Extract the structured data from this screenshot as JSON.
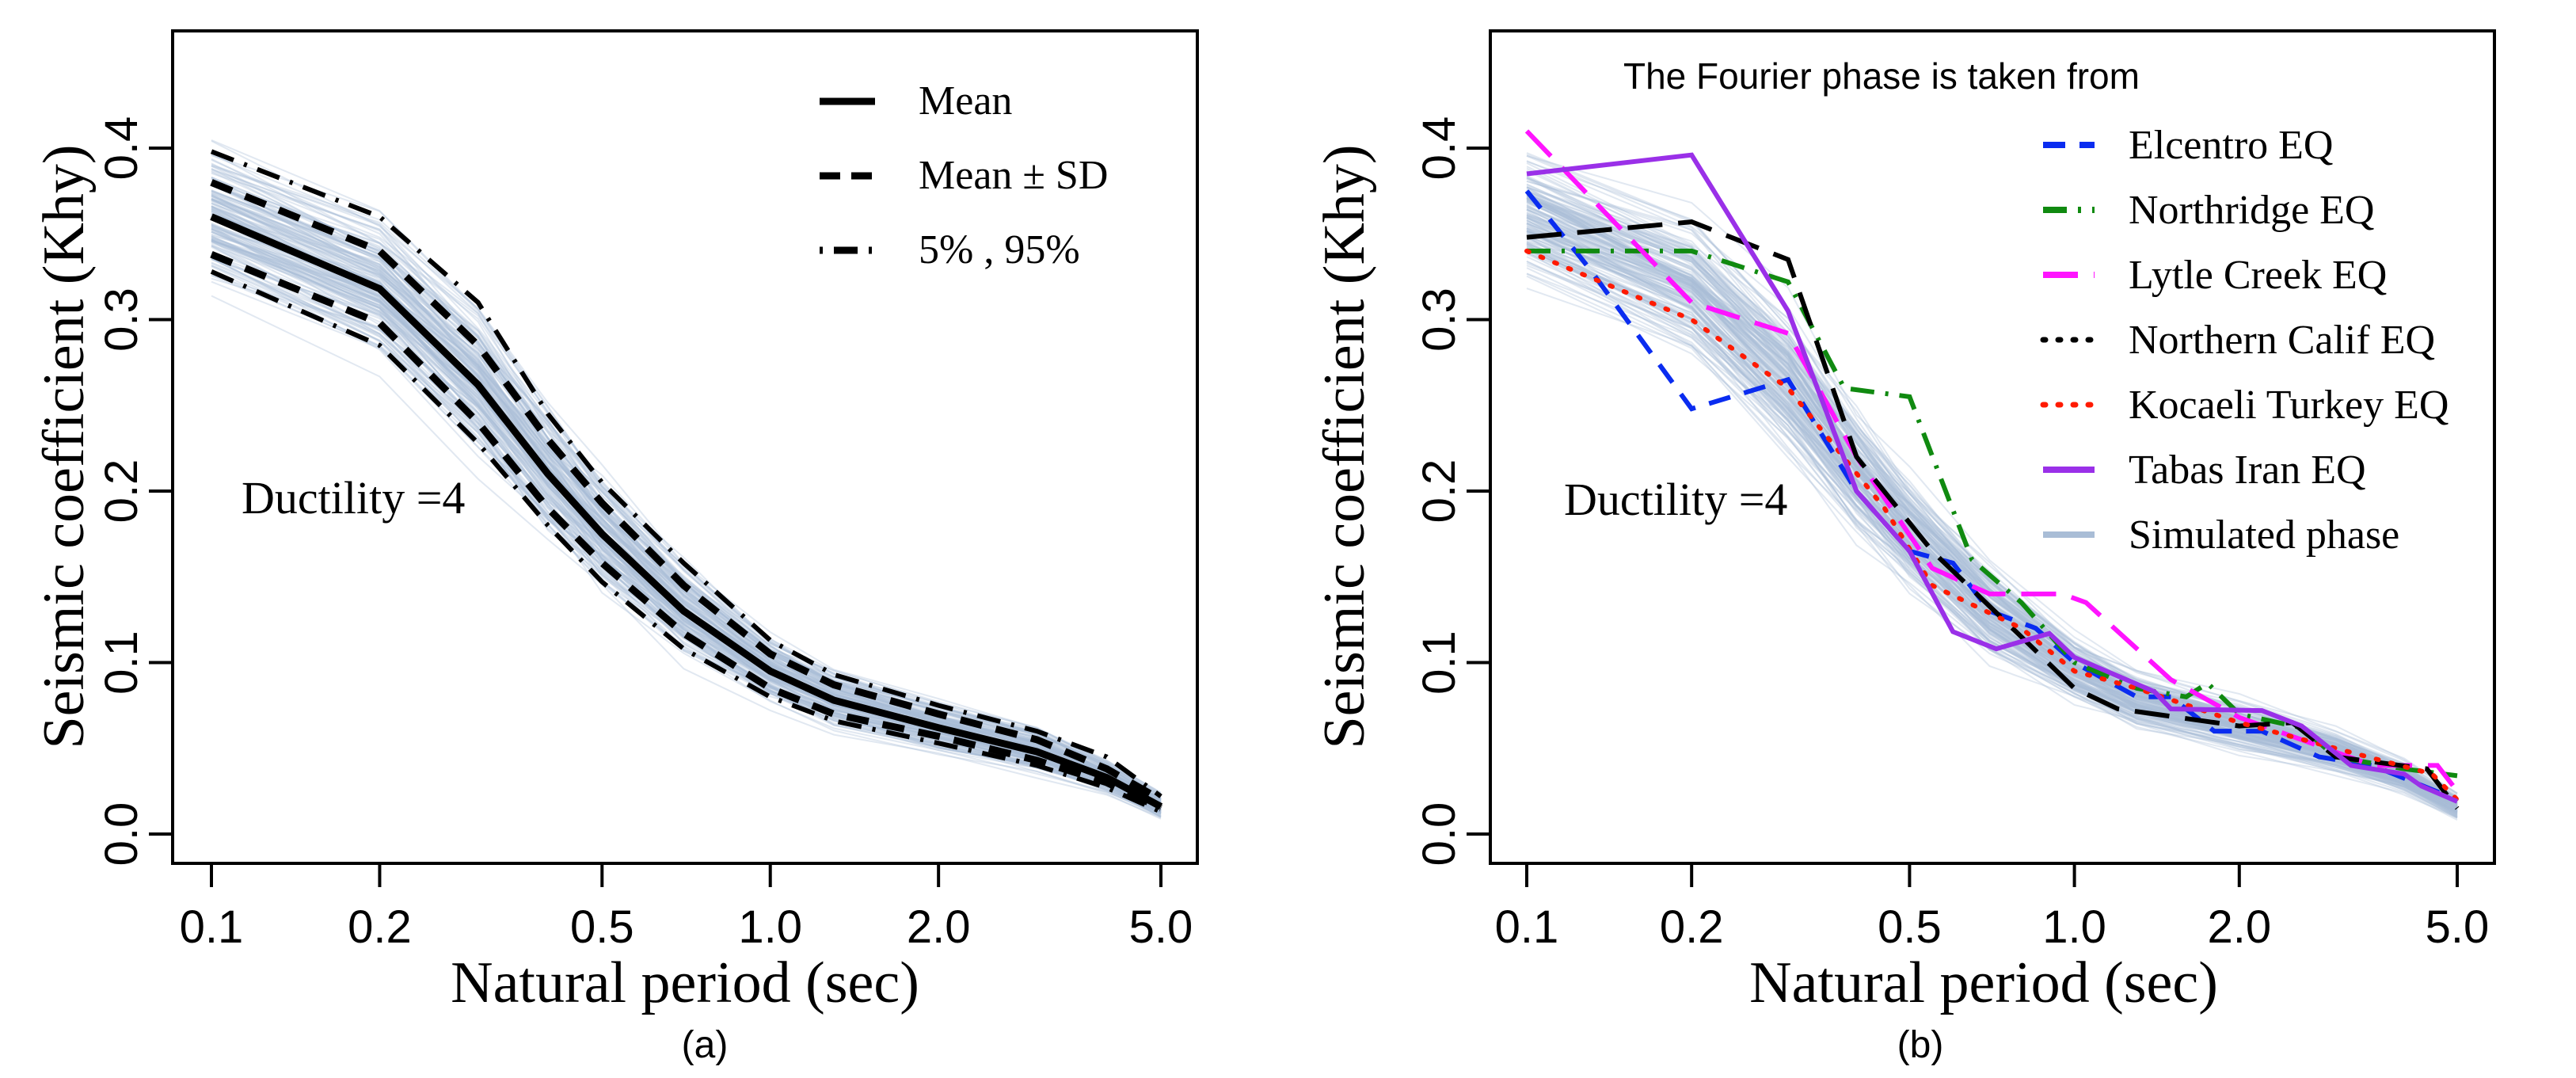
{
  "chart_data": [
    {
      "type": "line",
      "panel_caption": "(a)",
      "xlabel": "Natural period (sec)",
      "ylabel": "Seismic coefficient (Khy)",
      "xscale": "log",
      "xlim": [
        0.1,
        5.0
      ],
      "ylim": [
        0.0,
        0.45
      ],
      "xticks": [
        "0.1",
        "0.2",
        "0.5",
        "1.0",
        "2.0",
        "5.0"
      ],
      "yticks": [
        "0.0",
        "0.1",
        "0.2",
        "0.3",
        "0.4"
      ],
      "annotation": "Ductility =4",
      "legend_position": "top-right",
      "background_series": {
        "name": "Simulated phase",
        "color": "#a9bdd6"
      },
      "x": [
        0.1,
        0.2,
        0.3,
        0.4,
        0.5,
        0.7,
        1.0,
        1.3,
        2.0,
        3.0,
        4.0,
        5.0
      ],
      "series": [
        {
          "name": "Mean",
          "legend": "Mean",
          "style": "solid",
          "color": "#000000",
          "values": [
            0.36,
            0.318,
            0.262,
            0.21,
            0.175,
            0.13,
            0.095,
            0.078,
            0.062,
            0.048,
            0.033,
            0.016
          ]
        },
        {
          "name": "Mean + SD",
          "legend": "Mean ± SD",
          "style": "dashed",
          "color": "#000000",
          "values": [
            0.38,
            0.34,
            0.285,
            0.23,
            0.193,
            0.145,
            0.105,
            0.087,
            0.07,
            0.055,
            0.038,
            0.02
          ]
        },
        {
          "name": "Mean - SD",
          "legend": "",
          "style": "dashed",
          "color": "#000000",
          "values": [
            0.338,
            0.298,
            0.24,
            0.19,
            0.158,
            0.117,
            0.085,
            0.07,
            0.057,
            0.043,
            0.03,
            0.015
          ]
        },
        {
          "name": "95%",
          "legend": "5% , 95%",
          "style": "dashdot",
          "color": "#000000",
          "values": [
            0.398,
            0.36,
            0.31,
            0.245,
            0.205,
            0.158,
            0.113,
            0.093,
            0.075,
            0.06,
            0.045,
            0.022
          ]
        },
        {
          "name": "5%",
          "legend": "",
          "style": "dashdot",
          "color": "#000000",
          "values": [
            0.328,
            0.285,
            0.228,
            0.18,
            0.147,
            0.108,
            0.08,
            0.066,
            0.053,
            0.04,
            0.027,
            0.013
          ]
        }
      ]
    },
    {
      "type": "line",
      "panel_caption": "(b)",
      "title": "The Fourier phase  is taken from",
      "xlabel": "Natural period (sec)",
      "ylabel": "Seismic coefficient (Khy)",
      "xscale": "log",
      "xlim": [
        0.1,
        5.0
      ],
      "ylim": [
        0.0,
        0.45
      ],
      "xticks": [
        "0.1",
        "0.2",
        "0.5",
        "1.0",
        "2.0",
        "5.0"
      ],
      "yticks": [
        "0.0",
        "0.1",
        "0.2",
        "0.3",
        "0.4"
      ],
      "annotation": "Ductility =4",
      "legend_position": "top-right",
      "background_series": {
        "name": "Simulated phase",
        "color": "#a9bdd6"
      },
      "series": [
        {
          "name": "Elcentro EQ",
          "style": "dashed",
          "color": "#0a2cf0",
          "x": [
            0.1,
            0.13,
            0.2,
            0.3,
            0.4,
            0.5,
            0.6,
            0.7,
            0.85,
            1.0,
            1.3,
            1.5,
            1.8,
            2.2,
            2.8,
            3.5,
            5.0
          ],
          "values": [
            0.375,
            0.33,
            0.248,
            0.265,
            0.2,
            0.165,
            0.158,
            0.13,
            0.12,
            0.1,
            0.08,
            0.08,
            0.06,
            0.06,
            0.045,
            0.04,
            0.02
          ]
        },
        {
          "name": "Northridge EQ",
          "style": "dashdot",
          "color": "#108a10",
          "x": [
            0.1,
            0.2,
            0.3,
            0.38,
            0.5,
            0.65,
            0.8,
            1.0,
            1.3,
            1.6,
            1.75,
            2.0,
            2.6,
            3.0,
            4.0,
            5.0
          ],
          "values": [
            0.34,
            0.34,
            0.322,
            0.26,
            0.255,
            0.16,
            0.135,
            0.1,
            0.085,
            0.08,
            0.088,
            0.07,
            0.062,
            0.045,
            0.038,
            0.034
          ]
        },
        {
          "name": "Lytle Creek EQ",
          "style": "longdash",
          "color": "#ff14ff",
          "x": [
            0.1,
            0.2,
            0.3,
            0.4,
            0.55,
            0.7,
            0.95,
            1.05,
            1.5,
            2.0,
            2.6,
            3.5,
            4.6,
            5.0
          ],
          "values": [
            0.41,
            0.31,
            0.292,
            0.22,
            0.155,
            0.14,
            0.14,
            0.135,
            0.09,
            0.068,
            0.055,
            0.04,
            0.04,
            0.025
          ]
        },
        {
          "name": "Northern Calif EQ",
          "style": "longdash",
          "color": "#000000",
          "x": [
            0.1,
            0.2,
            0.3,
            0.4,
            0.55,
            0.8,
            1.0,
            1.2,
            2.0,
            2.5,
            3.0,
            4.4,
            4.6,
            5.0
          ],
          "values": [
            0.348,
            0.357,
            0.335,
            0.22,
            0.165,
            0.115,
            0.085,
            0.073,
            0.063,
            0.065,
            0.045,
            0.038,
            0.03,
            0.015
          ]
        },
        {
          "name": "Kocaeli Turkey EQ",
          "style": "dotted",
          "color": "#ff1a00",
          "x": [
            0.1,
            0.2,
            0.3,
            0.45,
            0.55,
            0.8,
            1.0,
            1.3,
            2.0,
            3.0,
            4.5,
            5.0
          ],
          "values": [
            0.34,
            0.3,
            0.26,
            0.19,
            0.145,
            0.12,
            0.095,
            0.085,
            0.065,
            0.05,
            0.035,
            0.02
          ]
        },
        {
          "name": "Tabas Iran EQ",
          "style": "solid",
          "color": "#9a30e8",
          "x": [
            0.1,
            0.2,
            0.3,
            0.4,
            0.5,
            0.6,
            0.72,
            0.9,
            1.0,
            1.4,
            1.5,
            2.2,
            2.6,
            3.2,
            4.0,
            4.3,
            5.0
          ],
          "values": [
            0.385,
            0.396,
            0.305,
            0.2,
            0.165,
            0.118,
            0.108,
            0.117,
            0.103,
            0.083,
            0.073,
            0.072,
            0.063,
            0.04,
            0.035,
            0.028,
            0.019
          ]
        }
      ],
      "legend": [
        "Elcentro EQ",
        "Northridge EQ",
        "Lytle Creek EQ",
        "Northern Calif EQ",
        "Kocaeli Turkey EQ",
        "Tabas Iran EQ",
        "Simulated phase"
      ]
    }
  ]
}
